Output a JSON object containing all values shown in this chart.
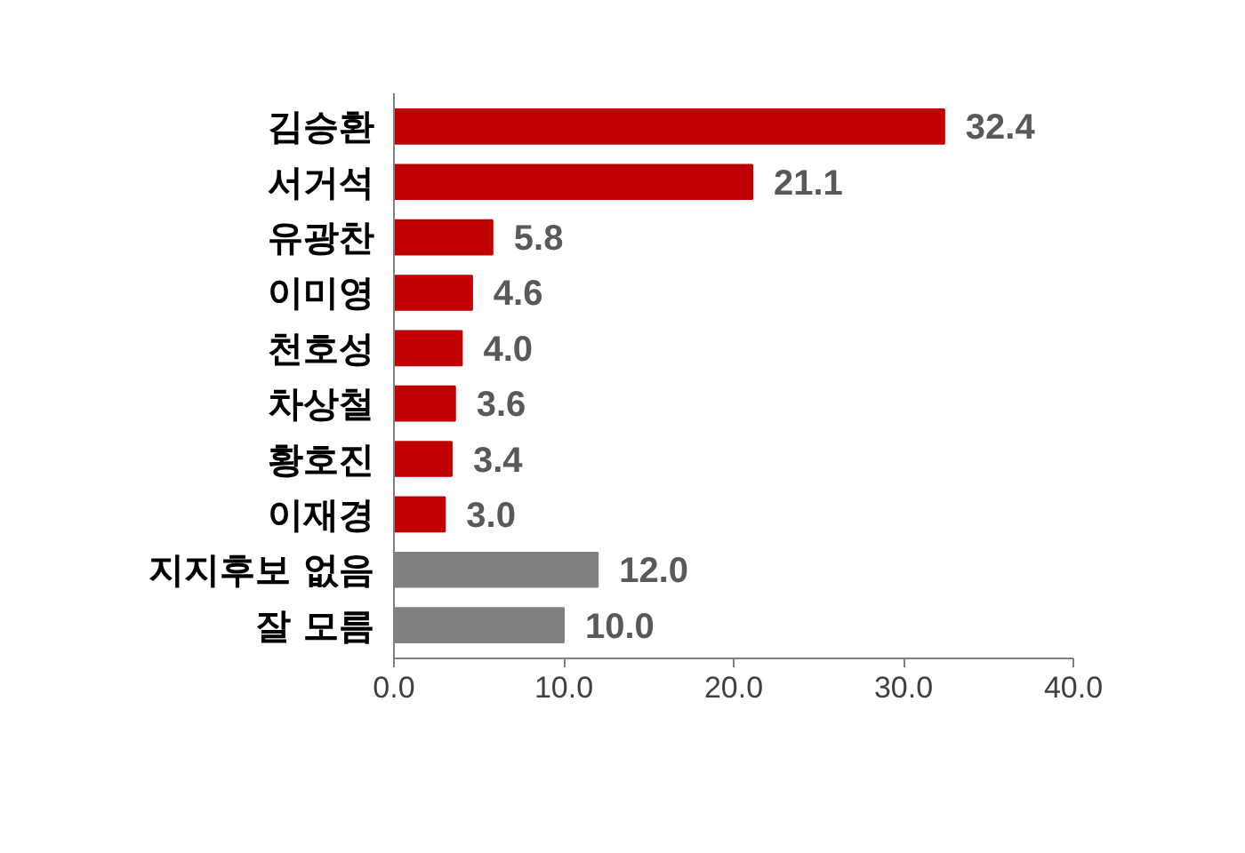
{
  "chart_data": {
    "type": "bar",
    "orientation": "horizontal",
    "categories": [
      "김승환",
      "서거석",
      "유광찬",
      "이미영",
      "천호성",
      "차상철",
      "황호진",
      "이재경",
      "지지후보 없음",
      "잘 모름"
    ],
    "values": [
      32.4,
      21.1,
      5.8,
      4.6,
      4.0,
      3.6,
      3.4,
      3.0,
      12.0,
      10.0
    ],
    "colors": [
      "#c00000",
      "#c00000",
      "#c00000",
      "#c00000",
      "#c00000",
      "#c00000",
      "#c00000",
      "#c00000",
      "#808080",
      "#808080"
    ],
    "value_labels": [
      "32.4",
      "21.1",
      "5.8",
      "4.6",
      "4.0",
      "3.6",
      "3.4",
      "3.0",
      "12.0",
      "10.0"
    ],
    "xlim": [
      0,
      40
    ],
    "xticks": [
      {
        "value": 0,
        "label": "0.0"
      },
      {
        "value": 10,
        "label": "10.0"
      },
      {
        "value": 20,
        "label": "20.0"
      },
      {
        "value": 30,
        "label": "30.0"
      },
      {
        "value": 40,
        "label": "40.0"
      }
    ],
    "grid": false
  }
}
